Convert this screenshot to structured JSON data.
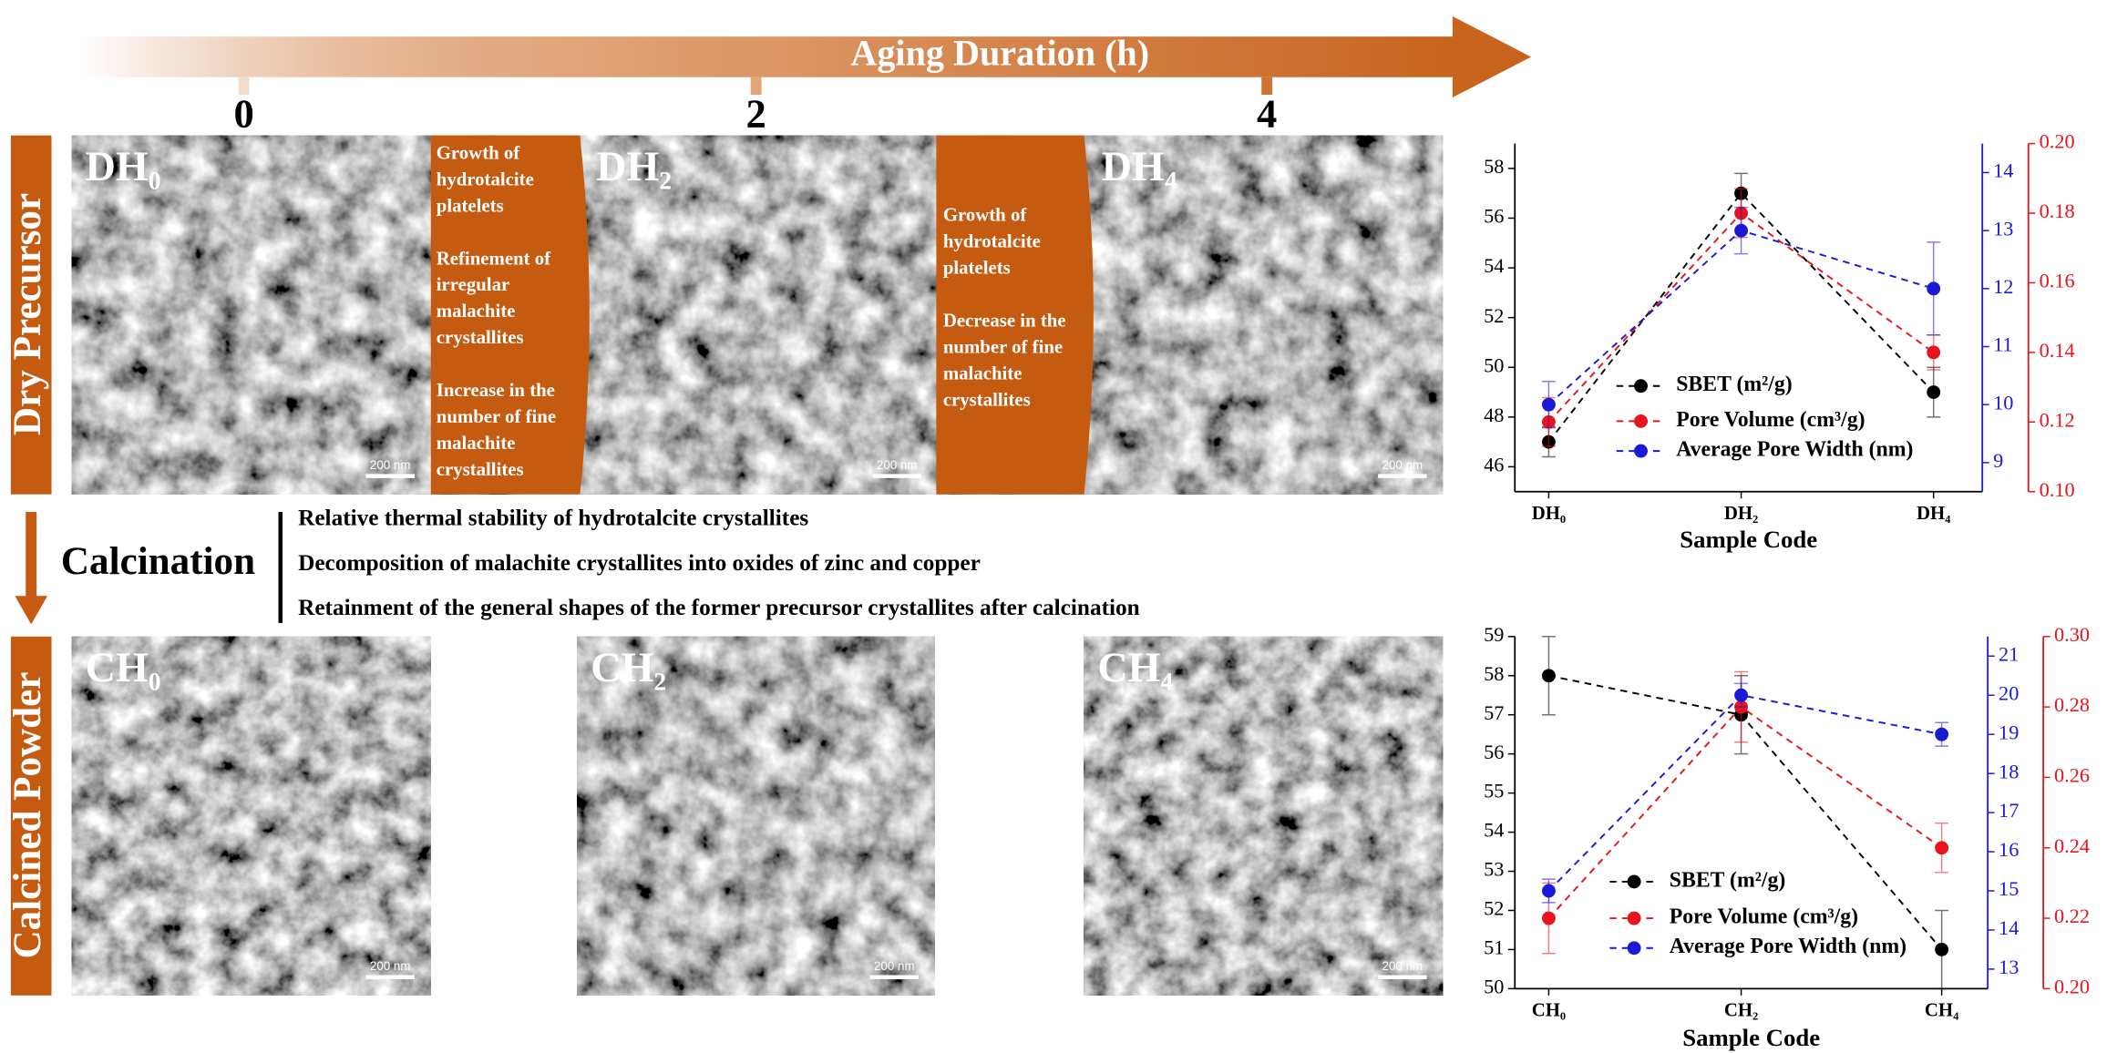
{
  "header": {
    "title": "Aging Duration (h)",
    "ticks": [
      "0",
      "2",
      "4"
    ]
  },
  "side_labels": [
    "Dry Precursor",
    "Calcined Powder"
  ],
  "calcination": {
    "title": "Calcination",
    "points": [
      "Relative thermal stability of hydrotalcite crystallites",
      "Decomposition of malachite crystallites into oxides of zinc and copper",
      "Retainment of the general shapes of the former precursor crystallites after calcination"
    ]
  },
  "images": [
    {
      "label": "DH₀",
      "scale": "200 nm"
    },
    {
      "label": "DH₂",
      "scale": "200 nm"
    },
    {
      "label": "DH₄",
      "scale": "200 nm"
    },
    {
      "label": "CH₀",
      "scale": "200 nm"
    },
    {
      "label": "CH₂",
      "scale": "200 nm"
    },
    {
      "label": "CH₄",
      "scale": "200 nm"
    }
  ],
  "callouts": [
    {
      "paragraphs": [
        [
          "Growth of",
          "hydrotalcite",
          "platelets"
        ],
        [
          "Refinement of",
          "irregular",
          "malachite",
          "crystallites"
        ],
        [
          "Increase in the",
          "number of fine",
          "malachite",
          "crystallites"
        ]
      ]
    },
    {
      "paragraphs": [
        [
          "Growth of",
          "hydrotalcite",
          "platelets"
        ],
        [
          "Decrease in the",
          "number of fine",
          "malachite",
          "crystallites"
        ]
      ]
    }
  ],
  "chart_data": [
    {
      "type": "line",
      "x_label": "Sample Code",
      "categories": [
        "DH₀",
        "DH₂",
        "DH₄"
      ],
      "ylim": [
        45,
        59
      ],
      "yticks": [
        46,
        48,
        50,
        52,
        54,
        56,
        58
      ],
      "y2lim": [
        8.5,
        14.5
      ],
      "y2ticks": [
        9,
        10,
        11,
        12,
        13,
        14
      ],
      "y3lim": [
        0.1,
        0.2
      ],
      "y3ticks": [
        {
          "value": 0.1,
          "label": "0.10"
        },
        0.12,
        0.14,
        0.16,
        0.18,
        {
          "value": 0.2,
          "label": "0.20"
        }
      ],
      "series": [
        {
          "name": "SBET (m²/g)",
          "color": "#000000",
          "axis": "y",
          "values": [
            47,
            57,
            49
          ],
          "errors": [
            0.6,
            0.8,
            1
          ]
        },
        {
          "name": "Pore Volume (cm³/g)",
          "color": "#e8141c",
          "axis": "y3",
          "values": [
            0.12,
            0.18,
            0.14
          ],
          "errors": [
            0.007,
            0.007,
            0.005
          ]
        },
        {
          "name": "Average Pore Width (nm)",
          "color": "#1a1ad6",
          "axis": "y2",
          "values": [
            10,
            13,
            12
          ],
          "errors": [
            0.4,
            0.4,
            0.8
          ]
        }
      ]
    },
    {
      "type": "line",
      "x_label": "Sample Code",
      "categories": [
        "CH₀",
        "CH₂",
        "CH₄"
      ],
      "ylim": [
        50,
        59
      ],
      "yticks": [
        50,
        51,
        52,
        53,
        54,
        55,
        56,
        57,
        58,
        59
      ],
      "y2lim": [
        12.5,
        21.5
      ],
      "y2ticks": [
        13,
        14,
        15,
        16,
        17,
        18,
        19,
        20,
        21
      ],
      "y3lim": [
        0.2,
        0.3
      ],
      "y3ticks": [
        {
          "value": 0.2,
          "label": "0.20"
        },
        0.22,
        0.24,
        0.26,
        0.28,
        {
          "value": 0.3,
          "label": "0.30"
        }
      ],
      "series": [
        {
          "name": "SBET (m²/g)",
          "color": "#000000",
          "axis": "y",
          "values": [
            58,
            57,
            51
          ],
          "errors": [
            1,
            1,
            1
          ]
        },
        {
          "name": "Pore Volume (cm³/g)",
          "color": "#e8141c",
          "axis": "y3",
          "values": [
            0.22,
            0.28,
            0.24
          ],
          "errors": [
            0.01,
            0.01,
            0.007
          ]
        },
        {
          "name": "Average Pore Width (nm)",
          "color": "#1a1ad6",
          "axis": "y2",
          "values": [
            15,
            20,
            19
          ],
          "errors": [
            0.3,
            0.3,
            0.3
          ]
        }
      ]
    }
  ]
}
